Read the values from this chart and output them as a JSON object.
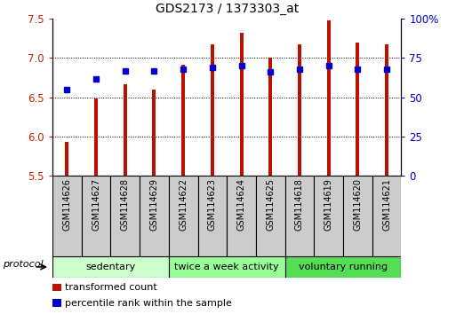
{
  "title": "GDS2173 / 1373303_at",
  "samples": [
    "GSM114626",
    "GSM114627",
    "GSM114628",
    "GSM114629",
    "GSM114622",
    "GSM114623",
    "GSM114624",
    "GSM114625",
    "GSM114618",
    "GSM114619",
    "GSM114620",
    "GSM114621"
  ],
  "red_values": [
    5.93,
    6.49,
    6.67,
    6.6,
    6.92,
    7.17,
    7.32,
    7.0,
    7.18,
    7.48,
    7.2,
    7.17
  ],
  "blue_values": [
    55,
    62,
    67,
    67,
    68,
    69,
    70,
    66,
    68,
    70,
    68,
    68
  ],
  "ylim_left": [
    5.5,
    7.5
  ],
  "ylim_right": [
    0,
    100
  ],
  "yticks_left": [
    5.5,
    6.0,
    6.5,
    7.0,
    7.5
  ],
  "yticks_right": [
    0,
    25,
    50,
    75,
    100
  ],
  "ytick_labels_right": [
    "0",
    "25",
    "50",
    "75",
    "100%"
  ],
  "baseline": 5.5,
  "groups": [
    {
      "label": "sedentary",
      "start": 0,
      "end": 4,
      "color": "#ccffcc"
    },
    {
      "label": "twice a week activity",
      "start": 4,
      "end": 8,
      "color": "#99ff99"
    },
    {
      "label": "voluntary running",
      "start": 8,
      "end": 12,
      "color": "#55dd55"
    }
  ],
  "bar_color": "#bb1100",
  "dot_color": "#0000cc",
  "bar_width": 0.12,
  "protocol_label": "protocol",
  "ylabel_left_color": "#cc2200",
  "ylabel_right_color": "#0000cc",
  "legend_items": [
    {
      "label": "transformed count",
      "color": "#bb1100"
    },
    {
      "label": "percentile rank within the sample",
      "color": "#0000cc"
    }
  ],
  "grid_lines": [
    6.0,
    6.5,
    7.0
  ],
  "sample_box_color": "#cccccc",
  "figure_width": 5.13,
  "figure_height": 3.54,
  "dpi": 100
}
